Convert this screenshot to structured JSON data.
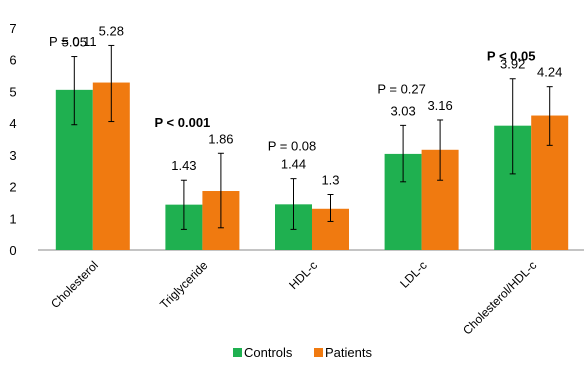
{
  "chart_data": {
    "type": "bar",
    "categories": [
      "Cholesterol",
      "Triglyceride",
      "HDL-c",
      "LDL-c",
      "Cholesterol/HDL-c"
    ],
    "series": [
      {
        "name": "Controls",
        "color": "#1fb050",
        "values": [
          5.05,
          1.43,
          1.44,
          3.03,
          3.92
        ],
        "value_labels": [
          "5.05",
          "1.43",
          "1.44",
          "3.03",
          "3.92"
        ],
        "error_low": [
          3.95,
          0.65,
          0.65,
          2.15,
          2.4
        ],
        "error_high": [
          6.1,
          2.2,
          2.25,
          3.93,
          5.4
        ]
      },
      {
        "name": "Patients",
        "color": "#f07a10",
        "values": [
          5.28,
          1.86,
          1.3,
          3.16,
          4.24
        ],
        "value_labels": [
          "5.28",
          "1.86",
          "1.3",
          "3.16",
          "4.24"
        ],
        "error_low": [
          4.05,
          0.7,
          0.9,
          2.2,
          3.3
        ],
        "error_high": [
          6.45,
          3.05,
          1.75,
          4.1,
          5.15
        ]
      }
    ],
    "p_values": [
      {
        "text": "P = 0.11",
        "bold": false
      },
      {
        "text": "P < 0.001",
        "bold": true
      },
      {
        "text": "P = 0.08",
        "bold": false
      },
      {
        "text": "P = 0.27",
        "bold": false
      },
      {
        "text": "P < 0.05",
        "bold": true
      }
    ],
    "p_value_level": [
      7.0,
      4.45,
      3.7,
      5.5,
      6.55
    ],
    "y_ticks": [
      "0",
      "1",
      "2",
      "3",
      "4",
      "5",
      "6",
      "7"
    ],
    "ylim": [
      0,
      7
    ],
    "legend": {
      "placement": "bottom"
    },
    "grid": false
  }
}
